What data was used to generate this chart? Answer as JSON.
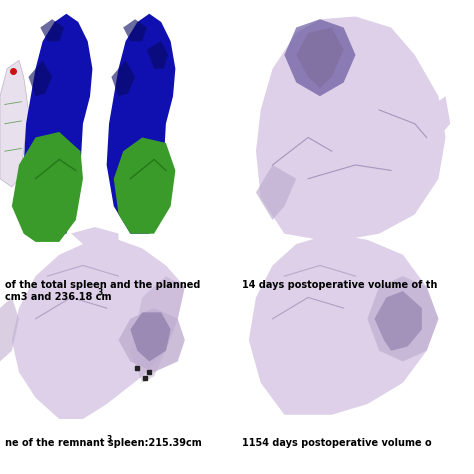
{
  "background_color": "#ffffff",
  "blue_color": "#1010b0",
  "blue_dark": "#080860",
  "green_color": "#3a9a2a",
  "green_dark": "#1a6a10",
  "lavender_light": "#ddd0e8",
  "lavender_mid": "#c0aed0",
  "lavender_dark": "#8070a0",
  "lavender_deep": "#6858a0",
  "white_spleen": "#e8dde8",
  "red_color": "#cc1111",
  "text_color": "#000000",
  "label1_line1": "of the total spleen and the planned",
  "label1_line2": "cm3 and 236.18 cm",
  "label2": "14 days postoperative volume of th",
  "label3": "ne of the remnant spleen:215.39cm",
  "label4": "1154 days postoperative volume o",
  "fontsize": 7.0
}
